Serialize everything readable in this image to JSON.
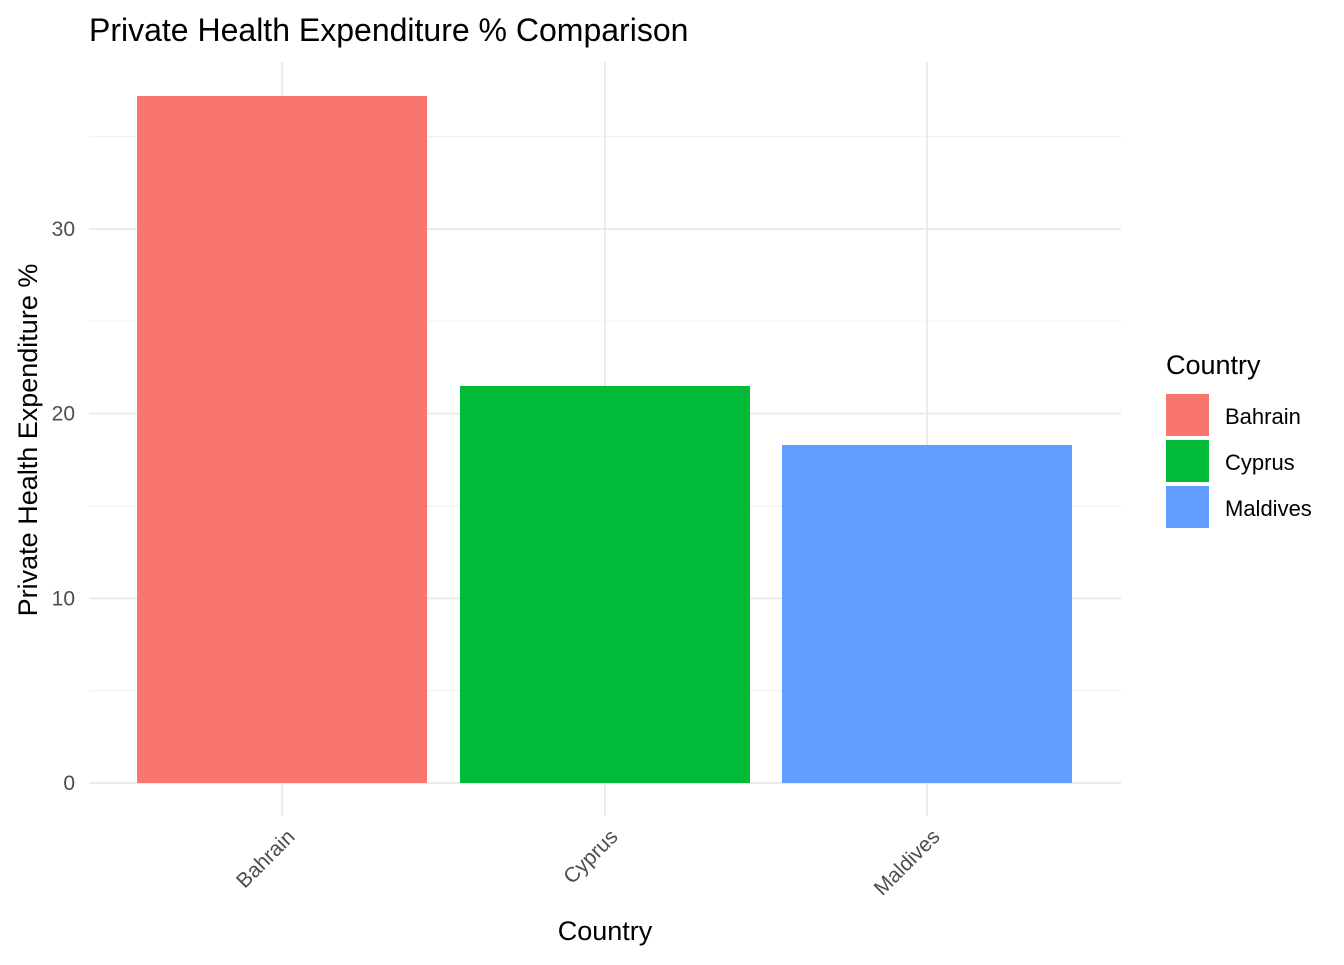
{
  "chart_data": {
    "type": "bar",
    "title": "Private Health Expenditure % Comparison",
    "xlabel": "Country",
    "ylabel": "Private Health Expenditure %",
    "categories": [
      "Bahrain",
      "Cyprus",
      "Maldives"
    ],
    "values": [
      37.2,
      21.5,
      18.3
    ],
    "colors": [
      "#F8766D",
      "#00BA38",
      "#619CFF"
    ],
    "ylim": [
      0,
      37.2
    ],
    "yticks": [
      0,
      10,
      20,
      30
    ],
    "grid": true,
    "legend": {
      "title": "Country",
      "position": "right",
      "entries": [
        "Bahrain",
        "Cyprus",
        "Maldives"
      ]
    }
  }
}
